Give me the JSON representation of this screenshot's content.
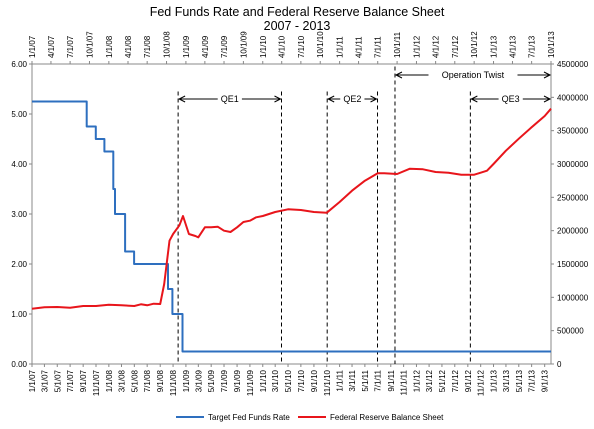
{
  "chart_data": {
    "type": "line",
    "title": "Fed Funds Rate and Federal Reserve Balance Sheet",
    "subtitle": "2007 - 2013",
    "x_range": [
      "2007-01-01",
      "2013-10-01"
    ],
    "y_left": {
      "range": [
        0,
        6
      ],
      "ticks": [
        "0.00",
        "1.00",
        "2.00",
        "3.00",
        "4.00",
        "5.00",
        "6.00"
      ]
    },
    "y_right": {
      "range": [
        0,
        4500000
      ],
      "ticks": [
        "0",
        "500000",
        "1000000",
        "1500000",
        "2000000",
        "2500000",
        "3000000",
        "3500000",
        "4000000",
        "4500000"
      ]
    },
    "x_ticks_bottom": [
      "1/1/07",
      "3/1/07",
      "5/1/07",
      "7/1/07",
      "9/1/07",
      "11/1/07",
      "1/1/08",
      "3/1/08",
      "5/1/08",
      "7/1/08",
      "9/1/08",
      "11/1/08",
      "1/1/09",
      "3/1/09",
      "5/1/09",
      "7/1/09",
      "9/1/09",
      "11/1/09",
      "1/1/10",
      "3/1/10",
      "5/1/10",
      "7/1/10",
      "9/1/10",
      "11/1/10",
      "1/1/11",
      "3/1/11",
      "5/1/11",
      "7/1/11",
      "9/1/11",
      "11/1/11",
      "1/1/12",
      "3/1/12",
      "5/1/12",
      "7/1/12",
      "9/1/12",
      "11/1/12",
      "1/1/13",
      "3/1/13",
      "5/1/13",
      "7/1/13",
      "9/1/13"
    ],
    "x_ticks_top": [
      "1/1/07",
      "4/1/07",
      "7/1/07",
      "10/1/07",
      "1/1/08",
      "4/1/08",
      "7/1/08",
      "10/1/08",
      "1/1/09",
      "4/1/09",
      "7/1/09",
      "10/1/09",
      "1/1/10",
      "4/1/10",
      "7/1/10",
      "10/1/10",
      "1/1/11",
      "4/1/11",
      "7/1/11",
      "10/1/11",
      "1/1/12",
      "4/1/12",
      "7/1/12",
      "10/1/12",
      "1/1/13",
      "4/1/13",
      "7/1/13",
      "10/1/13"
    ],
    "grid": false,
    "legend_position": "bottom",
    "series": [
      {
        "name": "Target Fed Funds Rate",
        "axis": "left",
        "color": "#2e6fbf",
        "step": true,
        "points": [
          [
            "2007-01-01",
            5.25
          ],
          [
            "2007-09-18",
            4.75
          ],
          [
            "2007-10-31",
            4.5
          ],
          [
            "2007-12-11",
            4.25
          ],
          [
            "2008-01-22",
            3.5
          ],
          [
            "2008-01-30",
            3.0
          ],
          [
            "2008-03-18",
            2.25
          ],
          [
            "2008-04-30",
            2.0
          ],
          [
            "2008-10-08",
            1.5
          ],
          [
            "2008-10-29",
            1.0
          ],
          [
            "2008-12-16",
            0.25
          ],
          [
            "2013-10-01",
            0.25
          ]
        ]
      },
      {
        "name": "Federal Reserve Balance Sheet",
        "axis": "right",
        "color": "#e8151b",
        "step": false,
        "points": [
          [
            "2007-01-01",
            830000
          ],
          [
            "2007-03-01",
            850000
          ],
          [
            "2007-05-01",
            855000
          ],
          [
            "2007-07-01",
            845000
          ],
          [
            "2007-09-01",
            870000
          ],
          [
            "2007-11-01",
            870000
          ],
          [
            "2008-01-01",
            890000
          ],
          [
            "2008-03-01",
            880000
          ],
          [
            "2008-05-01",
            870000
          ],
          [
            "2008-06-01",
            895000
          ],
          [
            "2008-07-01",
            880000
          ],
          [
            "2008-08-01",
            905000
          ],
          [
            "2008-09-01",
            900000
          ],
          [
            "2008-09-20",
            1200000
          ],
          [
            "2008-10-15",
            1850000
          ],
          [
            "2008-11-01",
            1950000
          ],
          [
            "2008-12-01",
            2080000
          ],
          [
            "2008-12-18",
            2220000
          ],
          [
            "2009-01-15",
            1950000
          ],
          [
            "2009-02-15",
            1920000
          ],
          [
            "2009-03-01",
            1900000
          ],
          [
            "2009-04-01",
            2050000
          ],
          [
            "2009-05-01",
            2050000
          ],
          [
            "2009-06-01",
            2060000
          ],
          [
            "2009-07-01",
            2000000
          ],
          [
            "2009-08-01",
            1980000
          ],
          [
            "2009-09-01",
            2050000
          ],
          [
            "2009-10-01",
            2130000
          ],
          [
            "2009-11-01",
            2150000
          ],
          [
            "2009-12-01",
            2200000
          ],
          [
            "2010-01-01",
            2220000
          ],
          [
            "2010-03-01",
            2280000
          ],
          [
            "2010-05-01",
            2320000
          ],
          [
            "2010-07-01",
            2310000
          ],
          [
            "2010-09-01",
            2280000
          ],
          [
            "2010-11-01",
            2270000
          ],
          [
            "2011-01-01",
            2430000
          ],
          [
            "2011-03-01",
            2600000
          ],
          [
            "2011-05-01",
            2750000
          ],
          [
            "2011-07-01",
            2860000
          ],
          [
            "2011-08-01",
            2860000
          ],
          [
            "2011-10-01",
            2850000
          ],
          [
            "2011-12-01",
            2930000
          ],
          [
            "2012-02-01",
            2920000
          ],
          [
            "2012-04-01",
            2880000
          ],
          [
            "2012-06-01",
            2870000
          ],
          [
            "2012-08-01",
            2840000
          ],
          [
            "2012-10-01",
            2840000
          ],
          [
            "2012-11-01",
            2870000
          ],
          [
            "2012-12-01",
            2900000
          ],
          [
            "2013-01-01",
            3000000
          ],
          [
            "2013-03-01",
            3200000
          ],
          [
            "2013-05-01",
            3380000
          ],
          [
            "2013-07-01",
            3550000
          ],
          [
            "2013-09-01",
            3720000
          ],
          [
            "2013-10-01",
            3830000
          ]
        ]
      }
    ],
    "annotations": [
      {
        "label": "QE1",
        "start": "2008-11-25",
        "end": "2010-03-31",
        "level_left": 5.3
      },
      {
        "label": "QE2",
        "start": "2010-11-03",
        "end": "2011-06-30",
        "level_left": 5.3
      },
      {
        "label": "Operation Twist",
        "start": "2011-09-21",
        "end": "2013-10-01",
        "level_left": 5.78
      },
      {
        "label": "QE3",
        "start": "2012-09-13",
        "end": "2013-10-01",
        "level_left": 5.3
      }
    ],
    "dashed_lines": [
      {
        "date": "2008-11-25",
        "top_left": 5.45
      },
      {
        "date": "2010-03-31",
        "top_left": 5.45
      },
      {
        "date": "2010-11-03",
        "top_left": 5.45
      },
      {
        "date": "2011-06-30",
        "top_left": 5.45
      },
      {
        "date": "2011-09-21",
        "top_left": 5.95
      },
      {
        "date": "2012-09-13",
        "top_left": 5.45
      }
    ]
  }
}
